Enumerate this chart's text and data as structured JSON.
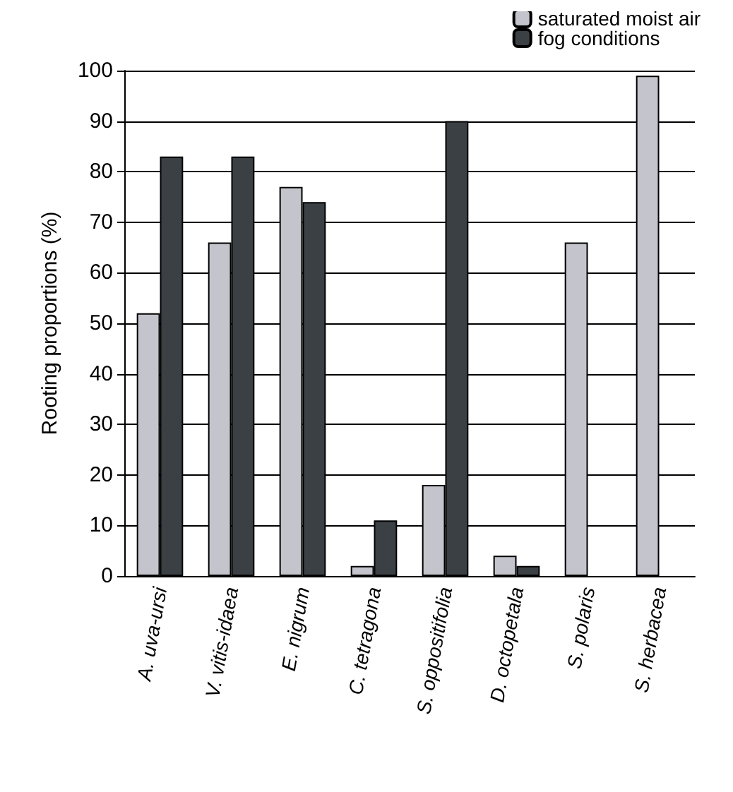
{
  "chart_data": {
    "type": "bar",
    "ylabel": "Rooting proportions (%)",
    "categories": [
      "A. uva-ursi",
      "V. vitis-idaea",
      "E. nigrum",
      "C. tetragona",
      "S. oppositifolia",
      "D. octopetala",
      "S. polaris",
      "S. herbacea"
    ],
    "series": [
      {
        "name": "saturated moist air",
        "color": "#c4c4cc",
        "values": [
          52,
          66,
          77,
          2,
          18,
          4,
          66,
          99
        ]
      },
      {
        "name": "fog conditions",
        "color": "#3b4045",
        "values": [
          83,
          83,
          74,
          11,
          90,
          2,
          null,
          null
        ]
      }
    ],
    "ylim": [
      0,
      100
    ],
    "yticks": [
      0,
      10,
      20,
      30,
      40,
      50,
      60,
      70,
      80,
      90,
      100
    ],
    "grid": "y",
    "legend": "top right"
  }
}
